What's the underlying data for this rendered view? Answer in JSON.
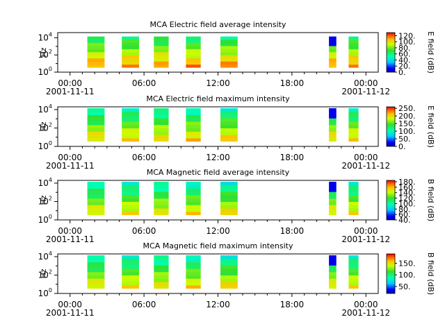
{
  "chart_data": [
    {
      "type": "heatmap",
      "title": "MCA  Electric field average intensity",
      "ylabel": "Hz",
      "colorbar_label": "E field (dB)",
      "colorbar_ticks": [
        "0.",
        "20.",
        "40.",
        "60.",
        "80.",
        "100.",
        "120."
      ],
      "colorbar_range": [
        0,
        130
      ],
      "y_ticks": [
        "10^0",
        "10^2",
        "10^4"
      ],
      "y_range_log10": [
        0,
        4.6
      ],
      "x_ticks": [
        "00:00",
        "06:00",
        "12:00",
        "18:00",
        "00:00"
      ],
      "x_tick_dates": [
        "2001-11-11",
        "",
        "",
        "",
        "2001-11-12"
      ],
      "x_range_hours": [
        -1,
        25
      ],
      "intervals_hours": [
        [
          1.4,
          2.8
        ],
        [
          4.2,
          5.6
        ],
        [
          6.8,
          8.0
        ],
        [
          9.4,
          10.6
        ],
        [
          12.2,
          13.6
        ],
        [
          21.0,
          21.6
        ],
        [
          22.6,
          23.4
        ]
      ],
      "typical_value_db": 85
    },
    {
      "type": "heatmap",
      "title": "MCA  Electric field maximum intensity",
      "ylabel": "Hz",
      "colorbar_label": "E field (dB)",
      "colorbar_ticks": [
        "0.",
        "50.",
        "100.",
        "150.",
        "200.",
        "250."
      ],
      "colorbar_range": [
        0,
        260
      ],
      "y_ticks": [
        "10^0",
        "10^2",
        "10^4"
      ],
      "y_range_log10": [
        0,
        4.3
      ],
      "x_ticks": [
        "00:00",
        "06:00",
        "12:00",
        "18:00",
        "00:00"
      ],
      "x_tick_dates": [
        "2001-11-11",
        "",
        "",
        "",
        "2001-11-12"
      ],
      "x_range_hours": [
        -1,
        25
      ],
      "intervals_hours": [
        [
          1.4,
          2.8
        ],
        [
          4.2,
          5.6
        ],
        [
          6.8,
          8.0
        ],
        [
          9.4,
          10.6
        ],
        [
          12.2,
          13.6
        ],
        [
          21.0,
          21.6
        ],
        [
          22.6,
          23.4
        ]
      ],
      "typical_value_db": 150
    },
    {
      "type": "heatmap",
      "title": "MCA  Magnetic field average intensity",
      "ylabel": "Hz",
      "colorbar_label": "B field (dB)",
      "colorbar_ticks": [
        "40.",
        "60.",
        "80.",
        "100.",
        "120.",
        "140.",
        "160.",
        "180."
      ],
      "colorbar_range": [
        40,
        185
      ],
      "y_ticks": [
        "10^0",
        "10^2",
        "10^4"
      ],
      "y_range_log10": [
        0,
        4.3
      ],
      "x_ticks": [
        "00:00",
        "06:00",
        "12:00",
        "18:00",
        "00:00"
      ],
      "x_tick_dates": [
        "2001-11-11",
        "",
        "",
        "",
        "2001-11-12"
      ],
      "x_range_hours": [
        -1,
        25
      ],
      "intervals_hours": [
        [
          1.4,
          2.8
        ],
        [
          4.2,
          5.6
        ],
        [
          6.8,
          8.0
        ],
        [
          9.4,
          10.6
        ],
        [
          12.2,
          13.6
        ],
        [
          21.0,
          21.6
        ],
        [
          22.6,
          23.4
        ]
      ],
      "typical_value_db": 120
    },
    {
      "type": "heatmap",
      "title": "MCA  Magnetic field maximum intensity",
      "ylabel": "Hz",
      "colorbar_label": "B field (dB)",
      "colorbar_ticks": [
        "50.",
        "100.",
        "150."
      ],
      "colorbar_range": [
        20,
        190
      ],
      "y_ticks": [
        "10^0",
        "10^2",
        "10^4"
      ],
      "y_range_log10": [
        0,
        4.3
      ],
      "x_ticks": [
        "00:00",
        "06:00",
        "12:00",
        "18:00",
        "00:00"
      ],
      "x_tick_dates": [
        "2001-11-11",
        "",
        "",
        "",
        "2001-11-12"
      ],
      "x_range_hours": [
        -1,
        25
      ],
      "intervals_hours": [
        [
          1.4,
          2.8
        ],
        [
          4.2,
          5.6
        ],
        [
          6.8,
          8.0
        ],
        [
          9.4,
          10.6
        ],
        [
          12.2,
          13.6
        ],
        [
          21.0,
          21.6
        ],
        [
          22.6,
          23.4
        ]
      ],
      "typical_value_db": 115
    }
  ]
}
